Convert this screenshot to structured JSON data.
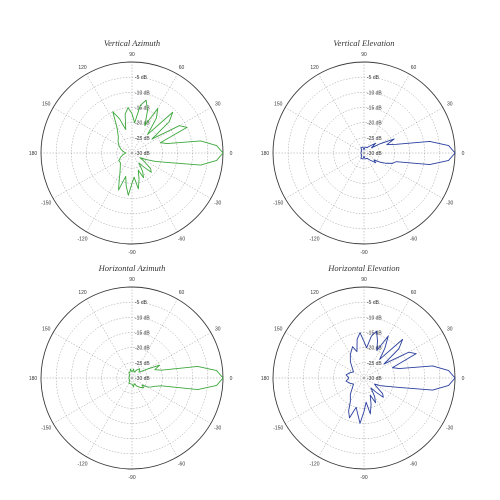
{
  "colors": {
    "green": "#3da83d",
    "blue": "#2a3f9e"
  },
  "chart_data": [
    {
      "type": "polar-line",
      "title": "Vertical Azimuth",
      "color": "#3da83d",
      "radial_unit": "dB",
      "rlim": [
        -30,
        0
      ],
      "ring_labels": [
        "-5 dB",
        "-10 dB",
        "-15 dB",
        "-20 dB",
        "-25 dB",
        "-30 dB"
      ],
      "angle_labels": [
        "0",
        "30",
        "60",
        "90",
        "120",
        "150",
        "180",
        "-150",
        "-120",
        "-90",
        "-60",
        "-30"
      ],
      "series": [
        {
          "angles_deg": [
            0,
            5,
            10,
            15,
            20,
            25,
            30,
            35,
            40,
            45,
            50,
            55,
            60,
            65,
            70,
            75,
            80,
            85,
            90,
            95,
            100,
            105,
            110,
            115,
            120,
            130,
            140,
            150,
            160,
            170,
            180,
            190,
            200,
            210,
            220,
            230,
            240,
            245,
            250,
            255,
            260,
            265,
            270,
            275,
            280,
            285,
            290,
            295,
            300,
            305,
            310,
            315,
            320,
            325,
            330,
            335,
            340,
            345,
            350,
            355,
            360
          ],
          "values_db": [
            0,
            -2,
            -7,
            -18,
            -20,
            -10,
            -12,
            -22,
            -14,
            -11,
            -22,
            -16,
            -13,
            -20,
            -15,
            -12,
            -14,
            -20,
            -17,
            -15,
            -17,
            -22,
            -18,
            -15,
            -20,
            -23,
            -24,
            -25,
            -26,
            -27,
            -28,
            -27,
            -26,
            -25,
            -25,
            -24,
            -22,
            -20,
            -17,
            -22,
            -19,
            -16,
            -20,
            -22,
            -18,
            -21,
            -24,
            -21,
            -23,
            -26,
            -24,
            -21,
            -22,
            -25,
            -27,
            -25,
            -22,
            -18,
            -7,
            -2,
            0
          ]
        }
      ]
    },
    {
      "type": "polar-line",
      "title": "Vertical Elevation",
      "color": "#2a3f9e",
      "radial_unit": "dB",
      "rlim": [
        -30,
        0
      ],
      "ring_labels": [
        "-5 dB",
        "-10 dB",
        "-15 dB",
        "-20 dB",
        "-25 dB",
        "-30 dB"
      ],
      "angle_labels": [
        "0",
        "30",
        "60",
        "90",
        "120",
        "150",
        "180",
        "-150",
        "-120",
        "-90",
        "-60",
        "-30"
      ],
      "series": [
        {
          "angles_deg": [
            0,
            5,
            10,
            15,
            20,
            25,
            30,
            35,
            40,
            50,
            60,
            70,
            80,
            90,
            100,
            110,
            120,
            140,
            160,
            180,
            200,
            220,
            240,
            250,
            260,
            270,
            280,
            290,
            300,
            310,
            320,
            325,
            330,
            335,
            340,
            345,
            350,
            355,
            360
          ],
          "values_db": [
            0,
            -2,
            -8,
            -19,
            -22,
            -19,
            -24,
            -27,
            -25,
            -27,
            -28,
            -28,
            -28,
            -29,
            -28,
            -28,
            -28,
            -29,
            -29,
            -29,
            -29,
            -29,
            -28,
            -28,
            -28,
            -29,
            -28,
            -28,
            -28,
            -27,
            -25,
            -26,
            -24,
            -22,
            -20,
            -19,
            -8,
            -2,
            0
          ]
        }
      ]
    },
    {
      "type": "polar-line",
      "title": "Horizontal Azimuth",
      "color": "#3da83d",
      "radial_unit": "dB",
      "rlim": [
        -30,
        0
      ],
      "ring_labels": [
        "-5 dB",
        "-10 dB",
        "-15 dB",
        "-20 dB",
        "-25 dB",
        "-30 dB"
      ],
      "angle_labels": [
        "0",
        "30",
        "60",
        "90",
        "120",
        "150",
        "180",
        "-150",
        "-120",
        "-90",
        "-60",
        "-30"
      ],
      "series": [
        {
          "angles_deg": [
            0,
            5,
            10,
            15,
            20,
            25,
            30,
            40,
            50,
            60,
            70,
            80,
            90,
            100,
            110,
            120,
            140,
            160,
            180,
            200,
            220,
            240,
            260,
            270,
            280,
            290,
            300,
            310,
            320,
            325,
            330,
            335,
            340,
            345,
            350,
            355,
            360
          ],
          "values_db": [
            0,
            -2,
            -8,
            -20,
            -22,
            -20,
            -24,
            -27,
            -26,
            -27,
            -28,
            -27,
            -28,
            -27,
            -28,
            -28,
            -29,
            -29,
            -29,
            -29,
            -29,
            -28,
            -28,
            -28,
            -27,
            -28,
            -27,
            -26,
            -25,
            -26,
            -24,
            -23,
            -22,
            -20,
            -8,
            -2,
            0
          ]
        }
      ]
    },
    {
      "type": "polar-line",
      "title": "Horizontal Elevation",
      "color": "#2a3f9e",
      "radial_unit": "dB",
      "rlim": [
        -30,
        0
      ],
      "ring_labels": [
        "-5 dB",
        "-10 dB",
        "-15 dB",
        "-20 dB",
        "-25 dB",
        "-30 dB"
      ],
      "angle_labels": [
        "0",
        "30",
        "60",
        "90",
        "120",
        "150",
        "180",
        "-150",
        "-120",
        "-90",
        "-60",
        "-30"
      ],
      "series": [
        {
          "angles_deg": [
            0,
            5,
            10,
            15,
            20,
            25,
            30,
            35,
            40,
            45,
            50,
            55,
            60,
            65,
            70,
            75,
            80,
            85,
            90,
            95,
            100,
            105,
            110,
            120,
            130,
            140,
            150,
            160,
            170,
            180,
            190,
            200,
            210,
            220,
            230,
            240,
            245,
            250,
            255,
            260,
            265,
            270,
            275,
            280,
            285,
            290,
            295,
            300,
            305,
            310,
            315,
            320,
            325,
            330,
            335,
            340,
            345,
            350,
            355,
            360
          ],
          "values_db": [
            0,
            -2,
            -7,
            -18,
            -20,
            -11,
            -13,
            -22,
            -15,
            -12,
            -22,
            -18,
            -14,
            -20,
            -17,
            -14,
            -16,
            -20,
            -18,
            -15,
            -17,
            -21,
            -19,
            -21,
            -23,
            -25,
            -26,
            -25,
            -24,
            -25,
            -24,
            -25,
            -26,
            -25,
            -23,
            -21,
            -18,
            -16,
            -20,
            -18,
            -15,
            -19,
            -22,
            -18,
            -21,
            -24,
            -21,
            -23,
            -26,
            -24,
            -21,
            -22,
            -25,
            -26,
            -24,
            -22,
            -18,
            -7,
            -2,
            0
          ]
        }
      ]
    }
  ]
}
